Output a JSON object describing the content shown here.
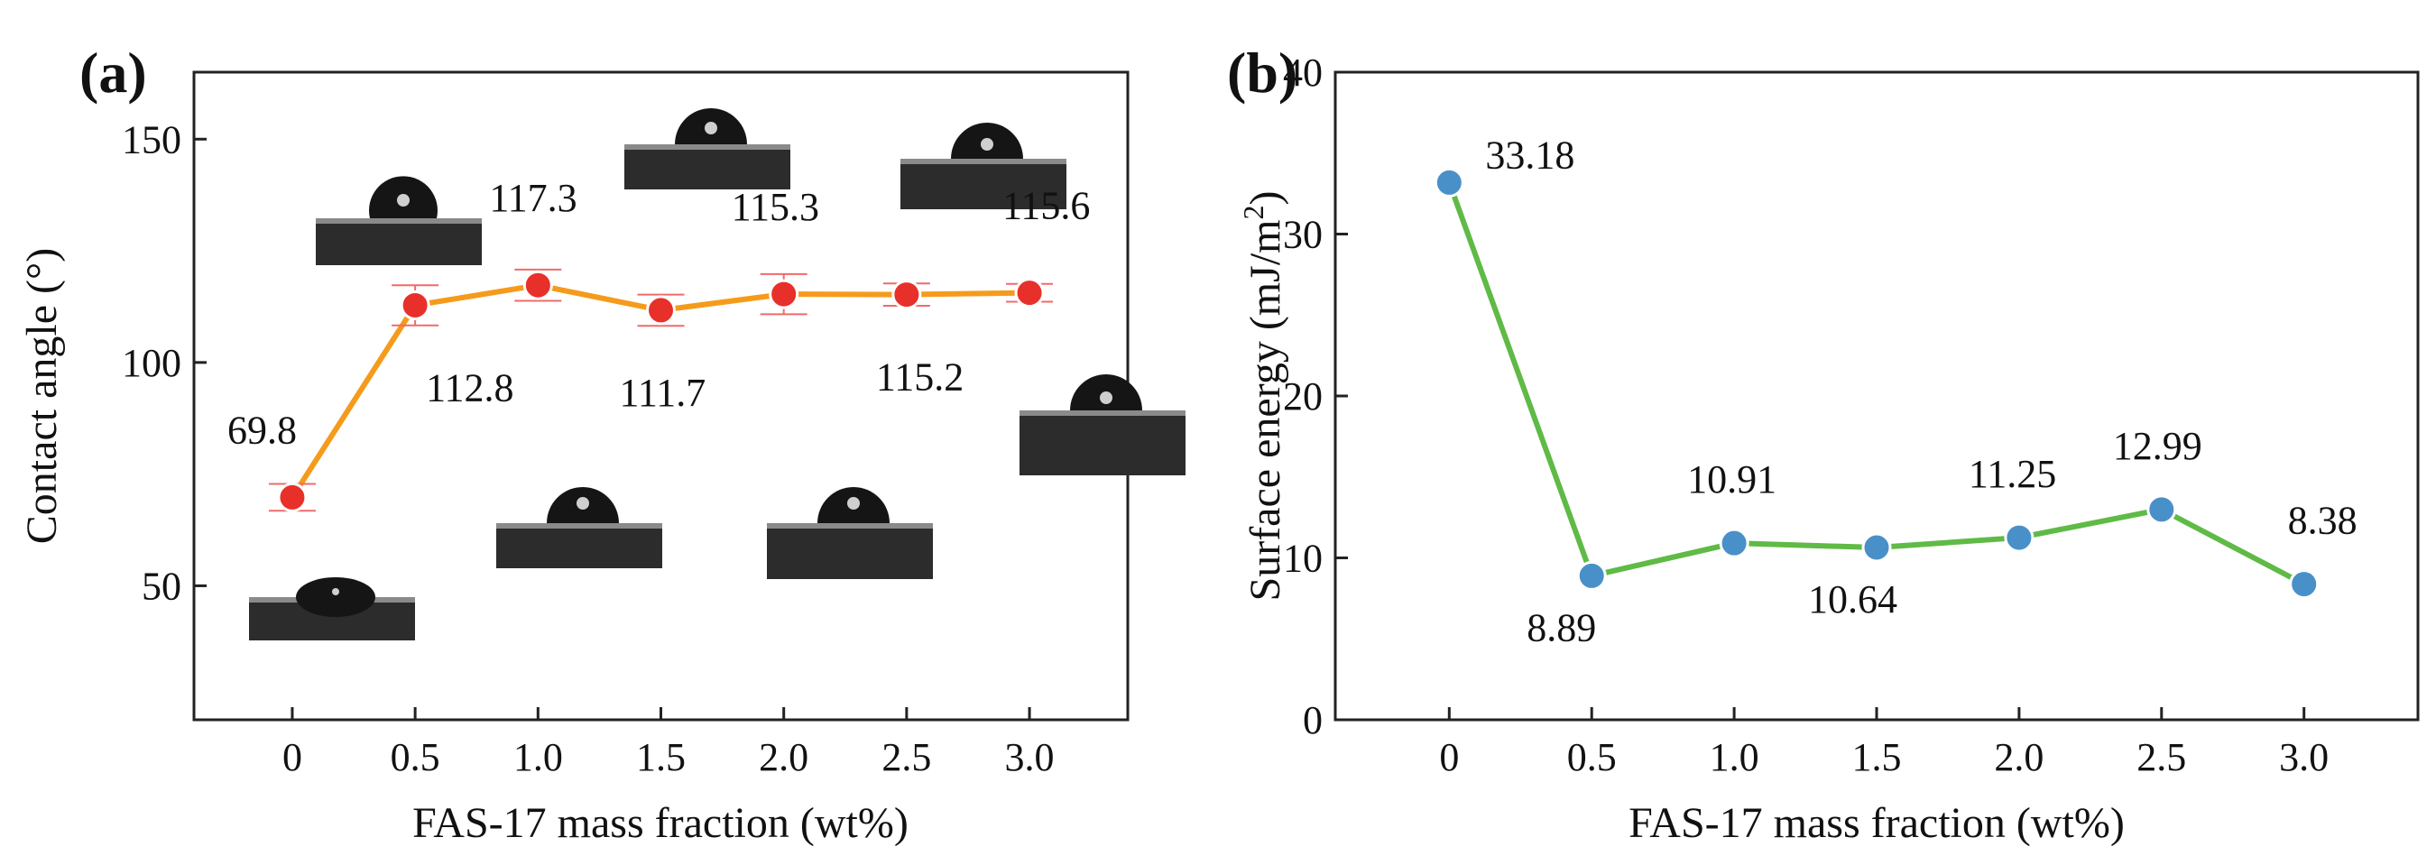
{
  "chart_data": [
    {
      "type": "line",
      "panel_label": "(a)",
      "xlabel": "FAS-17 mass fraction (wt%)",
      "ylabel": "Contact angle (°)",
      "x_tick_labels": [
        "0",
        "0.5",
        "1.0",
        "1.5",
        "2.0",
        "2.5",
        "3.0"
      ],
      "x": [
        0,
        0.5,
        1.0,
        1.5,
        2.0,
        2.5,
        3.0
      ],
      "xlim": [
        -0.4,
        3.4
      ],
      "ylim": [
        20,
        165
      ],
      "yticks": [
        50,
        100,
        150
      ],
      "series": [
        {
          "name": "Contact angle",
          "line_color": "#f59b1c",
          "marker_color": "#e8302a",
          "errorbar_color": "#f06a6a",
          "values": [
            69.8,
            112.8,
            117.3,
            111.7,
            115.3,
            115.2,
            115.6
          ],
          "errors": [
            3.0,
            4.5,
            3.5,
            3.5,
            4.5,
            2.5,
            2.0
          ],
          "data_labels": [
            "69.8",
            "112.8",
            "117.3",
            "111.7",
            "115.3",
            "115.2",
            "115.6"
          ]
        }
      ],
      "droplet_images": 7
    },
    {
      "type": "line",
      "panel_label": "(b)",
      "xlabel": "FAS-17 mass fraction (wt%)",
      "ylabel_main": "Surface energy (mJ/m",
      "ylabel_sup": "2",
      "ylabel_close": ")",
      "x_tick_labels": [
        "0",
        "0.5",
        "1.0",
        "1.5",
        "2.0",
        "2.5",
        "3.0"
      ],
      "x": [
        0,
        0.5,
        1.0,
        1.5,
        2.0,
        2.5,
        3.0
      ],
      "xlim": [
        -0.4,
        3.4
      ],
      "ylim": [
        0,
        40
      ],
      "yticks": [
        0,
        10,
        20,
        30,
        40
      ],
      "series": [
        {
          "name": "Surface energy",
          "line_color": "#5fba46",
          "marker_color": "#4a90c8",
          "values": [
            33.18,
            8.89,
            10.91,
            10.64,
            11.25,
            12.99,
            8.38
          ],
          "data_labels": [
            "33.18",
            "8.89",
            "10.91",
            "10.64",
            "11.25",
            "12.99",
            "8.38"
          ]
        }
      ]
    }
  ]
}
